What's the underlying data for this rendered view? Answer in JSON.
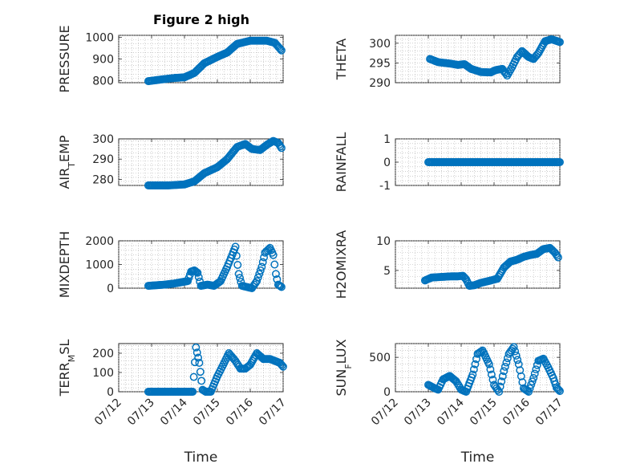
{
  "figure": {
    "title": "Figure 2 high",
    "marker_color": "#0072BD",
    "x_tick_labels": [
      "07/12",
      "07/13",
      "07/14",
      "07/15",
      "07/16",
      "07/17"
    ],
    "x_label": "Time"
  },
  "chart_data": [
    {
      "type": "scatter",
      "ylabel": "PRESSURE",
      "xlim": [
        0,
        5
      ],
      "ylim": [
        790,
        1010
      ],
      "yticks": [
        800,
        900,
        1000
      ],
      "grid": true,
      "anchors": [
        [
          0.9,
          797
        ],
        [
          1.3,
          805
        ],
        [
          1.7,
          812
        ],
        [
          2.0,
          815
        ],
        [
          2.3,
          835
        ],
        [
          2.6,
          880
        ],
        [
          3.0,
          910
        ],
        [
          3.3,
          930
        ],
        [
          3.6,
          970
        ],
        [
          4.0,
          985
        ],
        [
          4.5,
          985
        ],
        [
          4.75,
          975
        ],
        [
          4.95,
          940
        ]
      ]
    },
    {
      "type": "scatter",
      "ylabel": "THETA",
      "xlim": [
        0,
        5
      ],
      "ylim": [
        290,
        302
      ],
      "yticks": [
        290,
        295,
        300
      ],
      "grid": true,
      "anchors": [
        [
          1.05,
          296
        ],
        [
          1.3,
          295.2
        ],
        [
          1.7,
          294.8
        ],
        [
          1.9,
          294.5
        ],
        [
          2.1,
          294.7
        ],
        [
          2.3,
          293.5
        ],
        [
          2.6,
          292.7
        ],
        [
          2.9,
          292.6
        ],
        [
          3.05,
          293.2
        ],
        [
          3.25,
          293.5
        ],
        [
          3.4,
          291.8
        ],
        [
          3.55,
          294
        ],
        [
          3.7,
          296.5
        ],
        [
          3.85,
          298
        ],
        [
          4.05,
          296.5
        ],
        [
          4.2,
          296
        ],
        [
          4.35,
          297.5
        ],
        [
          4.55,
          300.5
        ],
        [
          4.75,
          301
        ],
        [
          5.0,
          300.3
        ]
      ]
    },
    {
      "type": "scatter",
      "ylabel": "AIR_TEMP",
      "xlim": [
        0,
        5
      ],
      "ylim": [
        277,
        300
      ],
      "yticks": [
        280,
        290,
        300
      ],
      "grid": true,
      "anchors": [
        [
          0.9,
          277
        ],
        [
          1.5,
          277
        ],
        [
          2.0,
          277.5
        ],
        [
          2.3,
          279
        ],
        [
          2.6,
          283
        ],
        [
          3.0,
          286
        ],
        [
          3.3,
          290
        ],
        [
          3.6,
          296
        ],
        [
          3.85,
          297.5
        ],
        [
          4.05,
          295
        ],
        [
          4.3,
          294.5
        ],
        [
          4.5,
          297
        ],
        [
          4.7,
          299
        ],
        [
          4.85,
          298
        ],
        [
          4.95,
          295.5
        ]
      ]
    },
    {
      "type": "scatter",
      "ylabel": "RAINFALL",
      "xlim": [
        0,
        5
      ],
      "ylim": [
        -1,
        1
      ],
      "yticks": [
        -1,
        0,
        1
      ],
      "grid": true,
      "anchors": [
        [
          1.0,
          0
        ],
        [
          5.0,
          0
        ]
      ]
    },
    {
      "type": "scatter",
      "ylabel": "MIXDEPTH",
      "xlim": [
        0,
        5
      ],
      "ylim": [
        0,
        2000
      ],
      "yticks": [
        0,
        1000,
        2000
      ],
      "grid": true,
      "anchors": [
        [
          0.9,
          100
        ],
        [
          1.4,
          150
        ],
        [
          1.7,
          200
        ],
        [
          1.9,
          250
        ],
        [
          2.1,
          300
        ],
        [
          2.2,
          700
        ],
        [
          2.3,
          750
        ],
        [
          2.4,
          650
        ],
        [
          2.5,
          100
        ],
        [
          2.7,
          150
        ],
        [
          2.9,
          100
        ],
        [
          3.1,
          300
        ],
        [
          3.3,
          900
        ],
        [
          3.45,
          1400
        ],
        [
          3.55,
          1750
        ],
        [
          3.65,
          600
        ],
        [
          3.75,
          100
        ],
        [
          3.9,
          50
        ],
        [
          4.05,
          0
        ],
        [
          4.2,
          300
        ],
        [
          4.35,
          900
        ],
        [
          4.45,
          1500
        ],
        [
          4.6,
          1700
        ],
        [
          4.7,
          1400
        ],
        [
          4.78,
          600
        ],
        [
          4.85,
          150
        ],
        [
          4.95,
          50
        ]
      ]
    },
    {
      "type": "scatter",
      "ylabel": "H2OMIXRA",
      "xlim": [
        0,
        5
      ],
      "ylim": [
        2,
        10
      ],
      "yticks": [
        5,
        10
      ],
      "grid": true,
      "anchors": [
        [
          0.9,
          3.3
        ],
        [
          1.1,
          3.8
        ],
        [
          1.4,
          3.9
        ],
        [
          1.7,
          4.0
        ],
        [
          1.9,
          4.0
        ],
        [
          2.05,
          4.1
        ],
        [
          2.15,
          3.5
        ],
        [
          2.25,
          2.4
        ],
        [
          2.4,
          2.5
        ],
        [
          2.6,
          2.9
        ],
        [
          2.9,
          3.3
        ],
        [
          3.1,
          3.6
        ],
        [
          3.3,
          5.5
        ],
        [
          3.5,
          6.5
        ],
        [
          3.7,
          6.8
        ],
        [
          3.9,
          7.3
        ],
        [
          4.1,
          7.6
        ],
        [
          4.3,
          7.8
        ],
        [
          4.5,
          8.6
        ],
        [
          4.7,
          8.8
        ],
        [
          4.85,
          8.0
        ],
        [
          4.95,
          7.2
        ]
      ]
    },
    {
      "type": "scatter",
      "ylabel": "TERR_MSL",
      "xlim": [
        0,
        5
      ],
      "ylim": [
        0,
        250
      ],
      "yticks": [
        0,
        100,
        200
      ],
      "grid": true,
      "anchors": [
        [
          0.9,
          0
        ],
        [
          1.5,
          0
        ],
        [
          2.0,
          0
        ],
        [
          2.25,
          0
        ],
        [
          2.35,
          230
        ],
        [
          2.45,
          150
        ],
        [
          2.55,
          10
        ],
        [
          2.65,
          0
        ],
        [
          2.8,
          0
        ],
        [
          3.0,
          80
        ],
        [
          3.15,
          130
        ],
        [
          3.35,
          200
        ],
        [
          3.55,
          160
        ],
        [
          3.7,
          120
        ],
        [
          3.85,
          120
        ],
        [
          4.0,
          140
        ],
        [
          4.2,
          200
        ],
        [
          4.4,
          170
        ],
        [
          4.6,
          170
        ],
        [
          4.75,
          160
        ],
        [
          4.9,
          150
        ],
        [
          5.0,
          130
        ]
      ]
    },
    {
      "type": "scatter",
      "ylabel": "SUN_FLUX",
      "xlim": [
        0,
        5
      ],
      "ylim": [
        0,
        700
      ],
      "yticks": [
        0,
        500
      ],
      "grid": true,
      "anchors": [
        [
          1.0,
          100
        ],
        [
          1.2,
          50
        ],
        [
          1.3,
          30
        ],
        [
          1.45,
          180
        ],
        [
          1.65,
          230
        ],
        [
          1.85,
          150
        ],
        [
          2.0,
          30
        ],
        [
          2.15,
          0
        ],
        [
          2.35,
          250
        ],
        [
          2.5,
          550
        ],
        [
          2.65,
          600
        ],
        [
          2.85,
          400
        ],
        [
          3.0,
          100
        ],
        [
          3.15,
          0
        ],
        [
          3.3,
          300
        ],
        [
          3.45,
          550
        ],
        [
          3.6,
          650
        ],
        [
          3.75,
          400
        ],
        [
          3.9,
          50
        ],
        [
          4.05,
          0
        ],
        [
          4.2,
          200
        ],
        [
          4.35,
          450
        ],
        [
          4.5,
          480
        ],
        [
          4.65,
          350
        ],
        [
          4.8,
          200
        ],
        [
          4.9,
          60
        ],
        [
          5.0,
          10
        ]
      ]
    }
  ]
}
